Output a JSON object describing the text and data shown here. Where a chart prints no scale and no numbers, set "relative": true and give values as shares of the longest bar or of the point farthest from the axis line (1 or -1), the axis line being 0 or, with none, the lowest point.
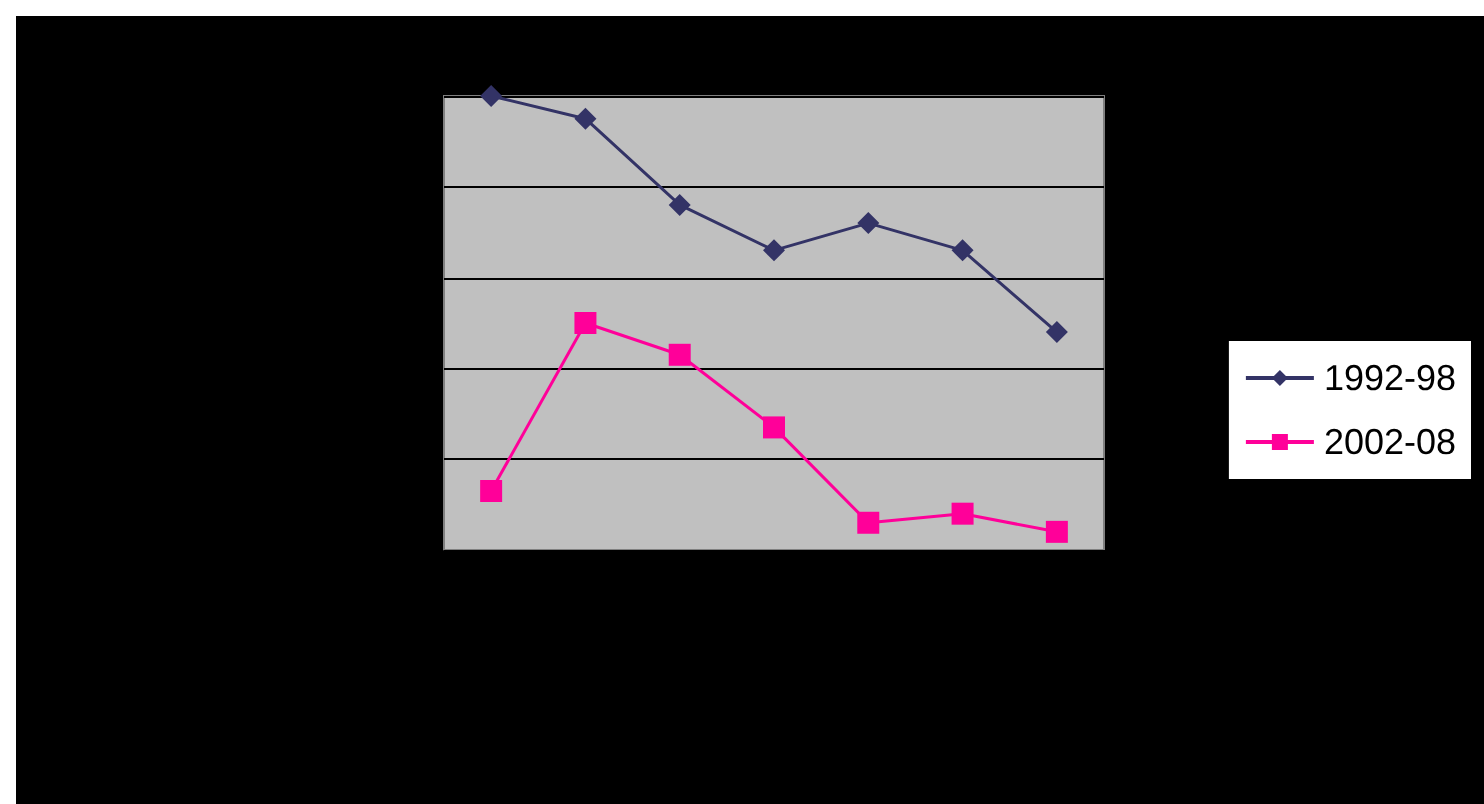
{
  "chart_data": {
    "type": "line",
    "relative": true,
    "categories": [
      null,
      null,
      null,
      null,
      null,
      null,
      null
    ],
    "series": [
      {
        "name": "1992-98",
        "color": "#333366",
        "marker": "diamond",
        "values": [
          1,
          0.95,
          0.76,
          0.66,
          0.72,
          0.66,
          0.48
        ]
      },
      {
        "name": "2002-08",
        "color": "#ff0099",
        "marker": "square",
        "values": [
          0.13,
          0.5,
          0.43,
          0.27,
          0.06,
          0.08,
          0.04
        ]
      }
    ],
    "grid": "y",
    "legend": "right",
    "line_style": "solid"
  }
}
